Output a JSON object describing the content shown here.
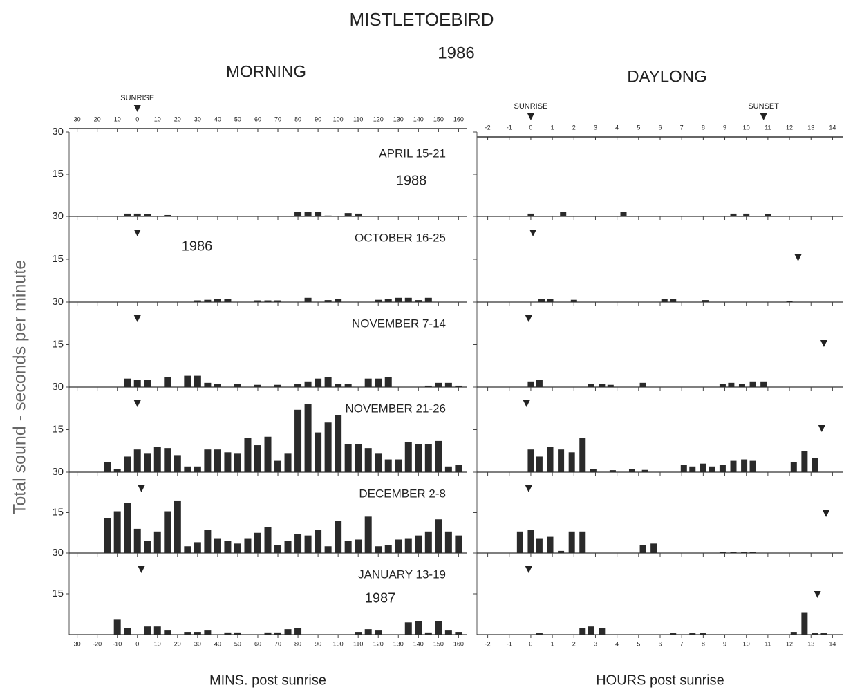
{
  "title": "MISTLETOEBIRD",
  "subtitle": "1986",
  "y_label": "Total sound - seconds per minute",
  "chart_data": [
    {
      "type": "bar",
      "title": "MORNING",
      "x_label": "MINS. post sunrise",
      "color": "#2a2a2a",
      "top_markers": [
        {
          "label": "SUNRISE",
          "value": 0
        }
      ],
      "xlim": [
        -34,
        164
      ],
      "xticks": [
        {
          "value": -30,
          "label": "30"
        },
        -20,
        -10,
        0,
        10,
        20,
        30,
        40,
        50,
        60,
        70,
        80,
        90,
        100,
        110,
        120,
        130,
        140,
        150,
        160
      ],
      "xticks_top": [
        {
          "value": -30,
          "label": "30"
        },
        {
          "value": -20,
          "label": "20"
        },
        {
          "value": -10,
          "label": "10"
        },
        0,
        10,
        20,
        30,
        40,
        50,
        60,
        70,
        80,
        90,
        100,
        110,
        120,
        130,
        140,
        150,
        160
      ],
      "ylim": [
        0,
        30
      ],
      "yticks": [
        15,
        30
      ],
      "panels": [
        {
          "label": "APRIL 15-21",
          "note": "1988",
          "x": [
            -5,
            0,
            5,
            15,
            80,
            85,
            90,
            95,
            105,
            110
          ],
          "values": [
            1,
            1,
            0.8,
            0.5,
            1.5,
            1.5,
            1.5,
            0.3,
            1.2,
            1
          ]
        },
        {
          "label": "OCTOBER 16-25",
          "note": "1986",
          "sunrise": 0,
          "x": [
            30,
            35,
            40,
            45,
            60,
            65,
            70,
            85,
            95,
            100,
            120,
            125,
            130,
            135,
            140,
            145
          ],
          "values": [
            0.6,
            0.8,
            1,
            1.2,
            0.6,
            0.6,
            0.6,
            1.5,
            0.7,
            1.2,
            0.8,
            1.2,
            1.5,
            1.5,
            0.7,
            1.5
          ]
        },
        {
          "label": "NOVEMBER 7-14",
          "sunrise": 0,
          "x": [
            -5,
            0,
            5,
            15,
            25,
            30,
            35,
            40,
            50,
            60,
            70,
            80,
            85,
            90,
            95,
            100,
            105,
            115,
            120,
            125,
            145,
            150,
            155,
            160
          ],
          "values": [
            3,
            2.5,
            2.5,
            3.5,
            4,
            4,
            1.5,
            1,
            1,
            0.8,
            0.8,
            1,
            2,
            3,
            3.5,
            1,
            1,
            3,
            3,
            3.5,
            0.5,
            1.5,
            1.5,
            0.5
          ]
        },
        {
          "label": "NOVEMBER 21-26",
          "sunrise": 0,
          "x": [
            -15,
            -10,
            -5,
            0,
            5,
            10,
            15,
            20,
            25,
            30,
            35,
            40,
            45,
            50,
            55,
            60,
            65,
            70,
            75,
            80,
            85,
            90,
            95,
            100,
            105,
            110,
            115,
            120,
            125,
            130,
            135,
            140,
            145,
            150,
            155,
            160
          ],
          "values": [
            3.5,
            1,
            5.5,
            8,
            6.5,
            9,
            8.5,
            6,
            2,
            2,
            8,
            8,
            7,
            6.5,
            12,
            9.5,
            12.5,
            4,
            6.5,
            22,
            24,
            14,
            17.5,
            20,
            10,
            10,
            8.5,
            6.5,
            4.5,
            4.5,
            10.5,
            10,
            10,
            11,
            2,
            2.5
          ]
        },
        {
          "label": "DECEMBER 2-8",
          "sunrise": 2,
          "x": [
            -15,
            -10,
            -5,
            0,
            5,
            10,
            15,
            20,
            25,
            30,
            35,
            40,
            45,
            50,
            55,
            60,
            65,
            70,
            75,
            80,
            85,
            90,
            95,
            100,
            105,
            110,
            115,
            120,
            125,
            130,
            135,
            140,
            145,
            150,
            155,
            160
          ],
          "values": [
            13,
            15.5,
            18.5,
            9,
            4.5,
            8,
            15.5,
            19.5,
            2.5,
            4,
            8.5,
            5.5,
            4.5,
            3.5,
            5.5,
            7.5,
            9.5,
            3,
            4.5,
            7,
            6.5,
            8.5,
            2.5,
            12,
            4.5,
            5,
            13.5,
            2.5,
            3,
            5,
            5.5,
            6.5,
            8,
            12.5,
            8,
            6.5
          ]
        },
        {
          "label": "JANUARY 13-19",
          "note": "1987",
          "sunrise": 2,
          "x": [
            -10,
            -5,
            5,
            10,
            15,
            25,
            30,
            35,
            45,
            50,
            65,
            70,
            75,
            80,
            110,
            115,
            120,
            135,
            140,
            145,
            150,
            155,
            160
          ],
          "values": [
            5.5,
            2.5,
            3,
            3,
            1.5,
            1,
            1,
            1.5,
            0.8,
            0.8,
            0.8,
            0.8,
            2,
            2.5,
            1,
            2,
            1.5,
            4.5,
            5,
            0.8,
            5,
            1.5,
            1
          ]
        }
      ]
    },
    {
      "type": "bar",
      "title": "DAYLONG",
      "x_label": "HOURS post sunrise",
      "color": "#2a2a2a",
      "top_markers": [
        {
          "label": "SUNRISE",
          "value": 0
        },
        {
          "label": "SUNSET",
          "value": 10.8
        }
      ],
      "xlim": [
        -2.5,
        14.5
      ],
      "xticks": [
        -2,
        -1,
        0,
        1,
        2,
        3,
        4,
        5,
        6,
        7,
        8,
        9,
        10,
        11,
        12,
        13,
        14
      ],
      "xticks_top": [
        -2,
        -1,
        0,
        1,
        2,
        3,
        4,
        5,
        6,
        7,
        8,
        9,
        10,
        11,
        12,
        13,
        14
      ],
      "ylim": [
        0,
        30
      ],
      "yticks": [
        15,
        30
      ],
      "panels": [
        {
          "x": [
            0,
            1.5,
            4.3,
            9.4,
            10,
            11
          ],
          "values": [
            1,
            1.5,
            1.5,
            1,
            1,
            0.8
          ]
        },
        {
          "sunrise": 0.1,
          "sunset": 12.4,
          "x": [
            0.5,
            0.9,
            2,
            6.2,
            6.6,
            8.1,
            12
          ],
          "values": [
            1,
            1,
            0.8,
            1,
            1.2,
            0.7,
            0.4
          ]
        },
        {
          "sunrise": -0.1,
          "sunset": 13.6,
          "x": [
            0,
            0.4,
            2.8,
            3.3,
            3.7,
            5.2,
            8.9,
            9.3,
            9.8,
            10.3,
            10.8
          ],
          "values": [
            2,
            2.5,
            1,
            1,
            0.8,
            1.5,
            1,
            1.5,
            1,
            2,
            2
          ]
        },
        {
          "sunrise": -0.2,
          "sunset": 13.5,
          "x": [
            0,
            0.4,
            0.9,
            1.4,
            1.9,
            2.4,
            2.9,
            3.8,
            4.7,
            5.3,
            7.1,
            7.5,
            8,
            8.4,
            8.9,
            9.4,
            9.9,
            10.3,
            12.2,
            12.7,
            13.2
          ],
          "values": [
            8,
            5.5,
            9,
            8,
            7,
            12,
            1,
            0.7,
            1,
            0.8,
            2.5,
            2,
            3,
            2,
            2.5,
            4,
            4.5,
            4,
            3.5,
            7.5,
            5
          ]
        },
        {
          "sunrise": -0.1,
          "sunset": 13.7,
          "x": [
            -0.5,
            0,
            0.4,
            0.9,
            1.4,
            1.9,
            2.4,
            5.2,
            5.7,
            8.9,
            9.4,
            9.9,
            10.3
          ],
          "values": [
            8,
            8.5,
            5.5,
            6,
            0.8,
            8,
            8,
            3,
            3.5,
            0.3,
            0.5,
            0.5,
            0.5
          ]
        },
        {
          "sunrise": -0.1,
          "sunset": 13.3,
          "x": [
            0.4,
            2.4,
            2.8,
            3.3,
            6.6,
            7.5,
            8,
            12.2,
            12.7,
            13.2,
            13.6
          ],
          "values": [
            0.5,
            2.5,
            3,
            2.5,
            0.5,
            0.5,
            0.5,
            1,
            8,
            0.5,
            0.5
          ]
        }
      ]
    }
  ]
}
